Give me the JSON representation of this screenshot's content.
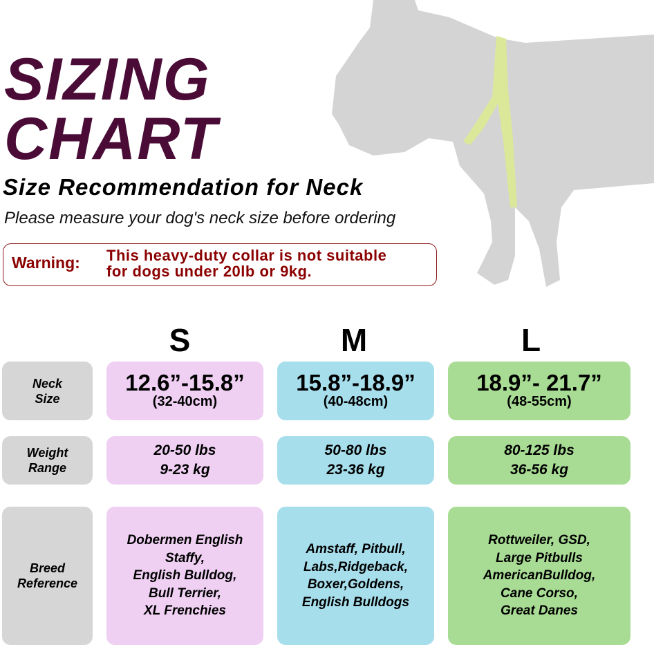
{
  "header": {
    "title_line1": "SIZING",
    "title_line2": "CHART",
    "subtitle": "Size Recommendation for Neck",
    "instruction": "Please measure your dog's neck size before ordering"
  },
  "warning": {
    "label": "Warning:",
    "line1": "This heavy-duty collar is not suitable",
    "line2": "for dogs under 20lb or 9kg."
  },
  "colors": {
    "title": "#4a0b36",
    "warning": "#8b0000",
    "small": "#efd0f3",
    "medium": "#a7deec",
    "large": "#a8dc94",
    "label": "#d6d6d6",
    "dog": "#d4d4d4",
    "tape": "#dbe89a"
  },
  "sizes": [
    "S",
    "M",
    "L"
  ],
  "rows": {
    "neck": {
      "label1": "Neck",
      "label2": "Size",
      "values": [
        {
          "in": "12.6”-15.8”",
          "cm": "(32-40cm)"
        },
        {
          "in": "15.8”-18.9”",
          "cm": "(40-48cm)"
        },
        {
          "in": "18.9”- 21.7”",
          "cm": "(48-55cm)"
        }
      ]
    },
    "weight": {
      "label1": "Weight",
      "label2": "Range",
      "values": [
        {
          "lbs": "20-50 lbs",
          "kg": "9-23 kg"
        },
        {
          "lbs": "50-80 lbs",
          "kg": "23-36 kg"
        },
        {
          "lbs": "80-125 lbs",
          "kg": "36-56 kg"
        }
      ]
    },
    "breed": {
      "label1": "Breed",
      "label2": "Reference",
      "values": [
        [
          "Dobermen English",
          "Staffy,",
          "English Bulldog,",
          "Bull Terrier,",
          "XL Frenchies"
        ],
        [
          "Amstaff, Pitbull,",
          "Labs,Ridgeback,",
          "Boxer,Goldens,",
          "English Bulldogs"
        ],
        [
          "Rottweiler, GSD,",
          "Large Pitbulls",
          "AmericanBulldog,",
          "Cane Corso,",
          "Great Danes"
        ]
      ]
    }
  }
}
